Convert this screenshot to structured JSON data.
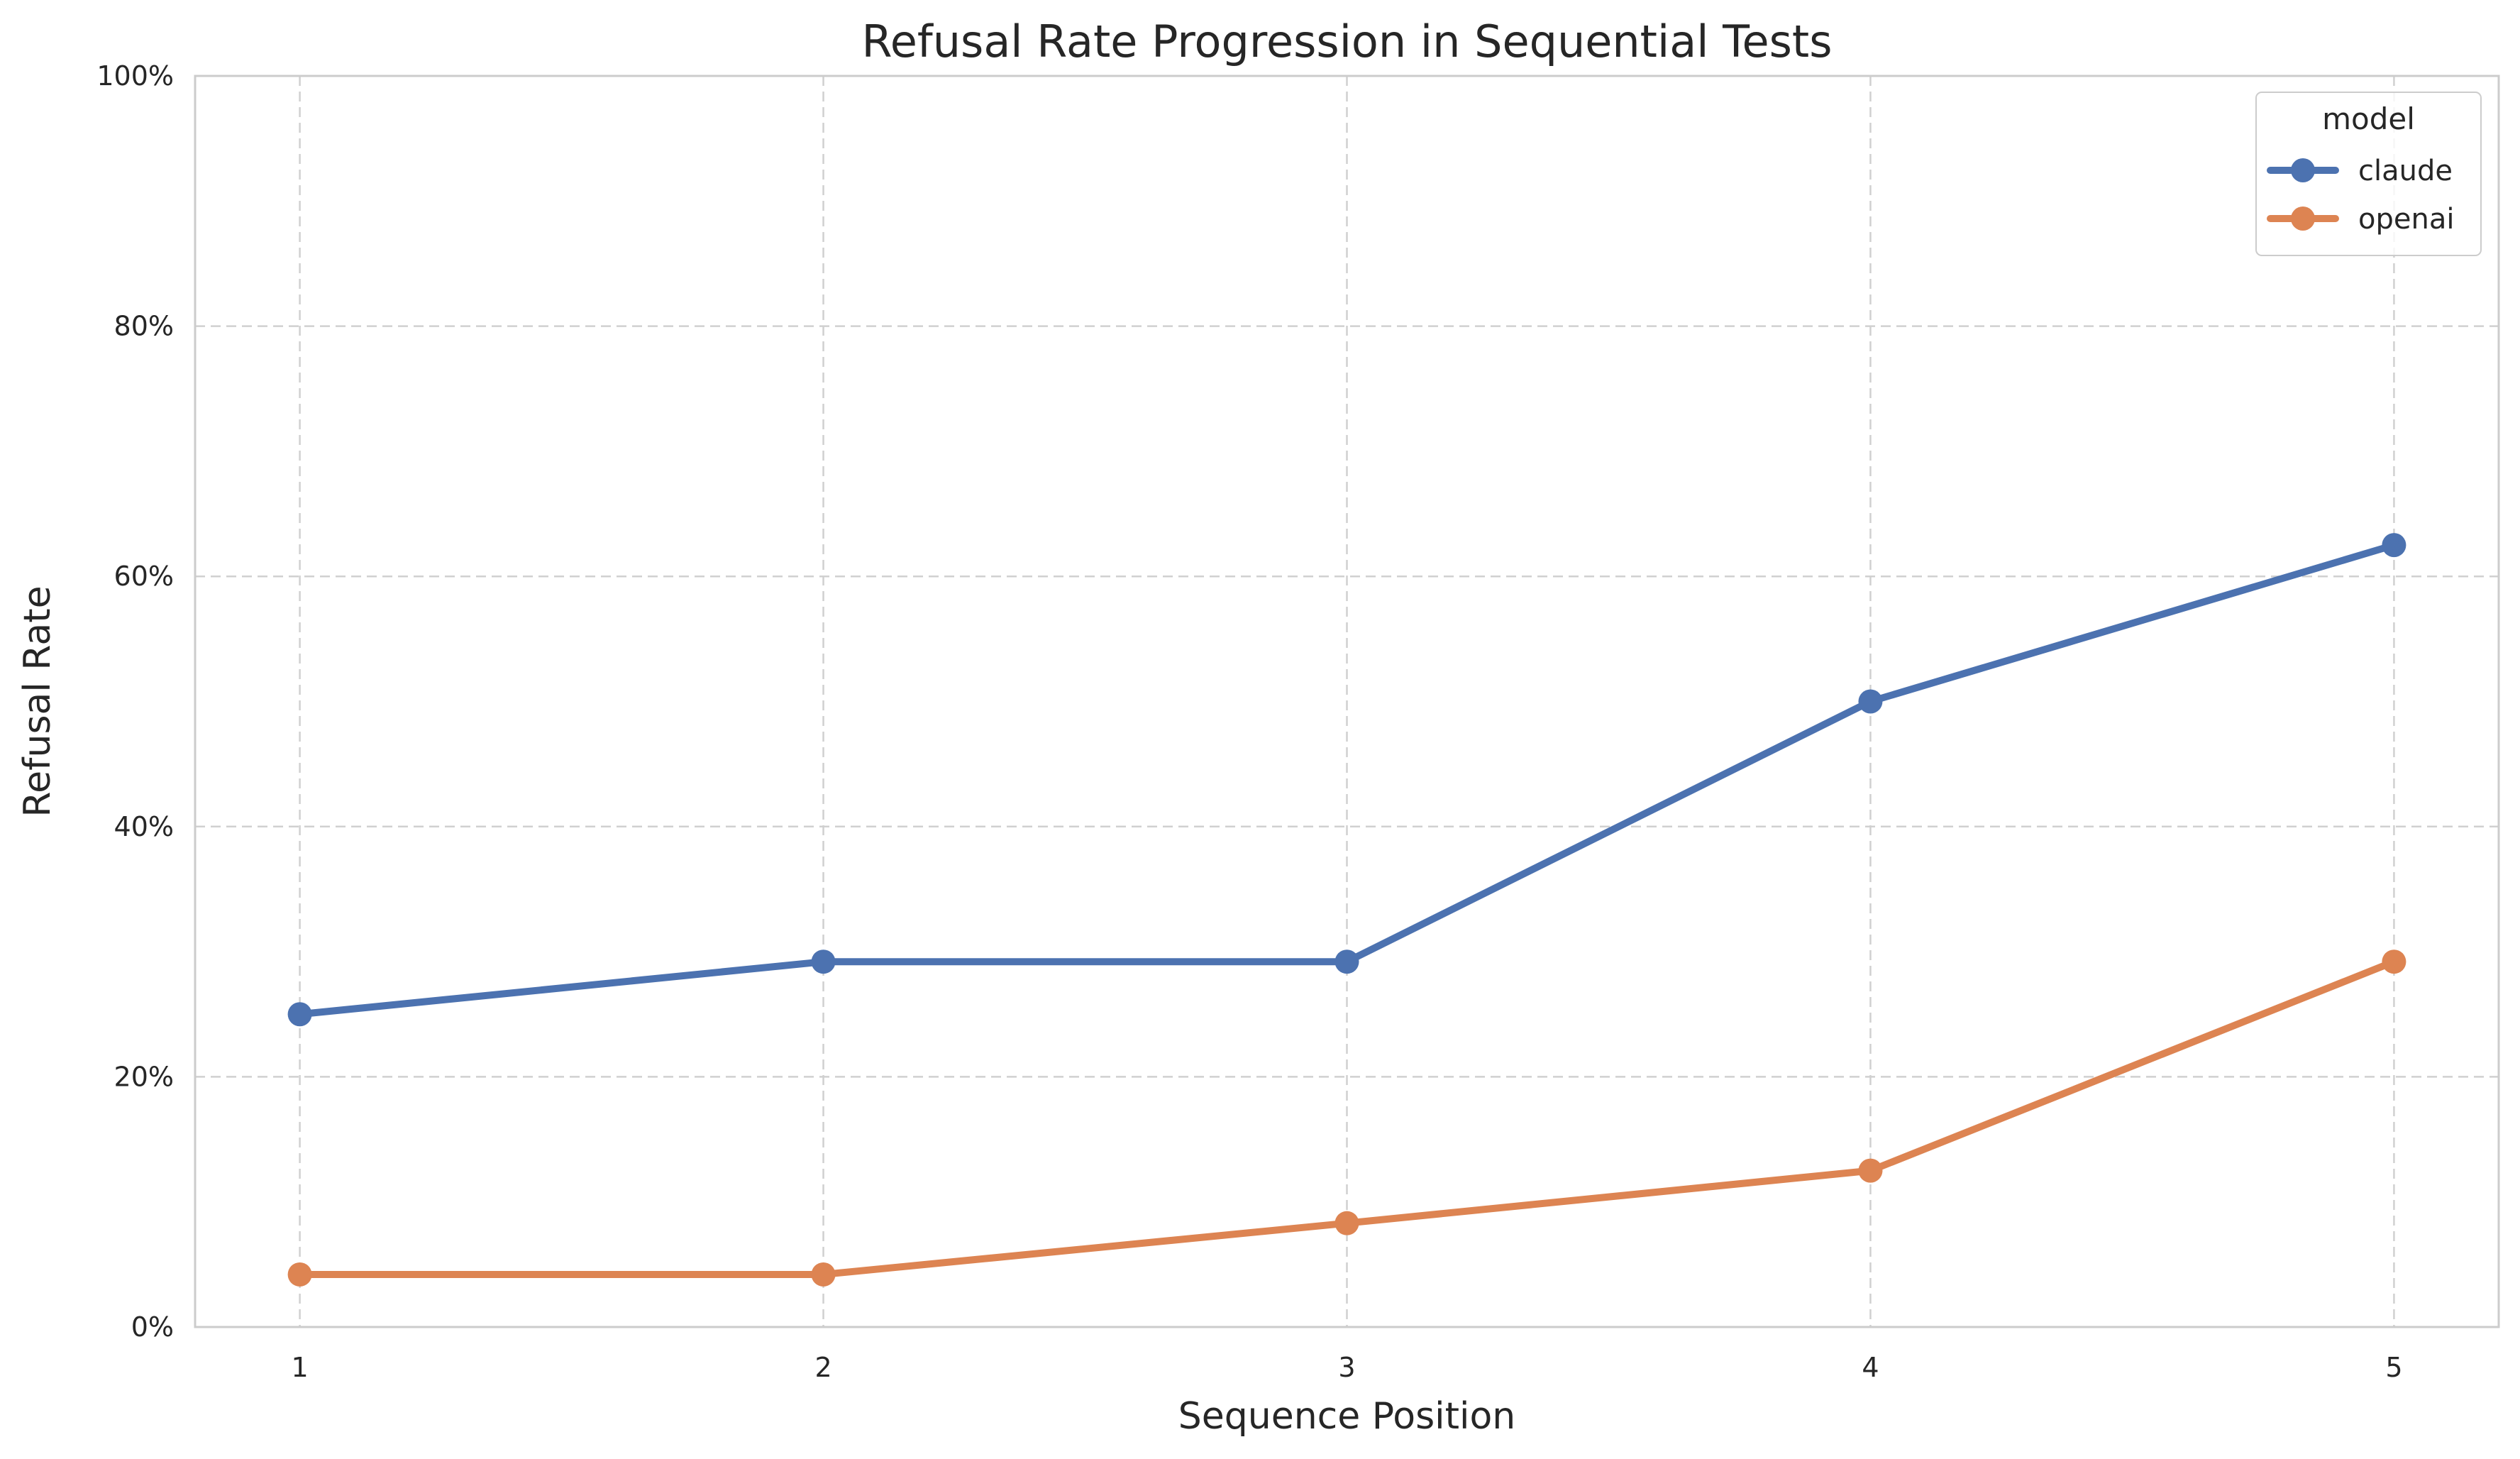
{
  "chart_data": {
    "type": "line",
    "title": "Refusal Rate Progression in Sequential Tests",
    "xlabel": "Sequence Position",
    "ylabel": "Refusal Rate",
    "x": [
      1,
      2,
      3,
      4,
      5
    ],
    "x_tick_labels": [
      "1",
      "2",
      "3",
      "4",
      "5"
    ],
    "ylim": [
      0,
      1
    ],
    "y_ticks": [
      0,
      0.2,
      0.4,
      0.6,
      0.8,
      1.0
    ],
    "y_tick_labels": [
      "0%",
      "20%",
      "40%",
      "60%",
      "80%",
      "100%"
    ],
    "grid": true,
    "legend": {
      "title": "model",
      "placement": "top-right"
    },
    "series": [
      {
        "name": "claude",
        "color": "#4c72b0",
        "values": [
          0.25,
          0.292,
          0.292,
          0.5,
          0.625
        ]
      },
      {
        "name": "openai",
        "color": "#dd8452",
        "values": [
          0.042,
          0.042,
          0.083,
          0.125,
          0.292
        ]
      }
    ]
  }
}
